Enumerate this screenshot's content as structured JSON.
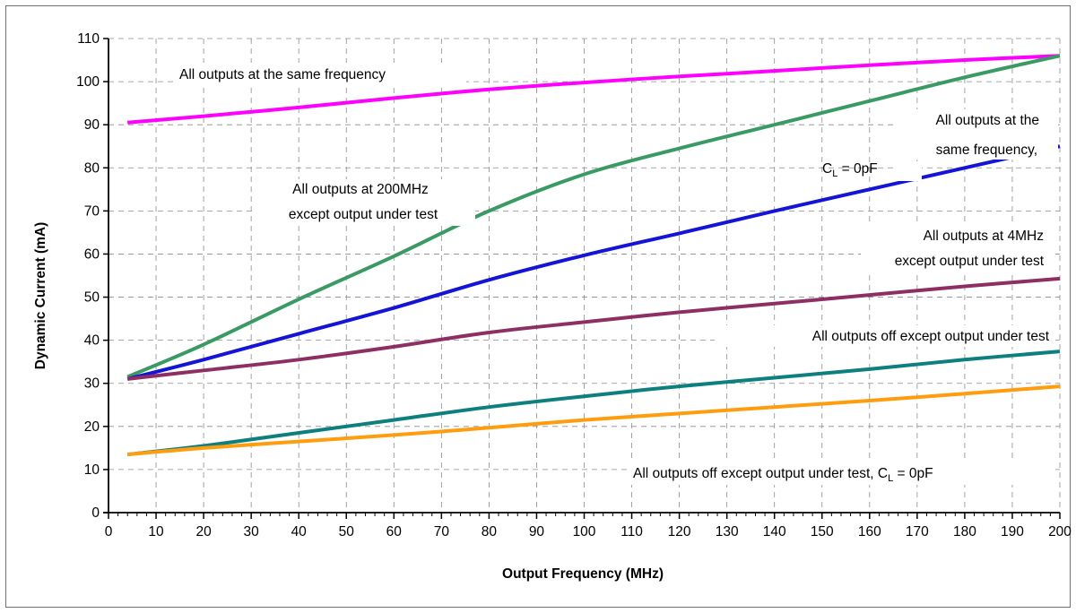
{
  "chart_data": {
    "type": "line",
    "title": "",
    "xlabel": "Output Frequency (MHz)",
    "ylabel": "Dynamic Current (mA)",
    "xlim": [
      0,
      200
    ],
    "ylim": [
      0,
      110
    ],
    "x_ticks": [
      0,
      10,
      20,
      30,
      40,
      50,
      60,
      70,
      80,
      90,
      100,
      110,
      120,
      130,
      140,
      150,
      160,
      170,
      180,
      190,
      200
    ],
    "y_ticks": [
      0,
      10,
      20,
      30,
      40,
      50,
      60,
      70,
      80,
      90,
      100,
      110
    ],
    "grid": true,
    "legend": "none",
    "series": [
      {
        "color": "#ff00ff",
        "x": [
          4,
          20,
          40,
          60,
          80,
          100,
          120,
          140,
          160,
          180,
          200
        ],
        "values": [
          90.5,
          92,
          94,
          96.2,
          98.2,
          99.8,
          101.2,
          102.5,
          103.8,
          105,
          106
        ]
      },
      {
        "color": "#3a9a64",
        "x": [
          4,
          20,
          40,
          60,
          80,
          100,
          120,
          140,
          160,
          180,
          200
        ],
        "values": [
          31.5,
          39,
          49.5,
          59.5,
          70,
          78.5,
          84.5,
          90,
          95.5,
          101,
          106
        ]
      },
      {
        "color": "#1414d8",
        "x": [
          4,
          20,
          40,
          60,
          80,
          100,
          120,
          140,
          160,
          180,
          200
        ],
        "values": [
          31,
          35.5,
          41.5,
          47.5,
          54,
          59.7,
          64.8,
          70,
          75,
          80,
          85
        ]
      },
      {
        "color": "#8e2f64",
        "x": [
          4,
          20,
          40,
          60,
          80,
          100,
          120,
          140,
          160,
          180,
          200
        ],
        "values": [
          31,
          33,
          35.5,
          38.5,
          41.8,
          44.2,
          46.5,
          48.5,
          50.5,
          52.5,
          54.3
        ]
      },
      {
        "color": "#0e7f7f",
        "x": [
          4,
          20,
          40,
          60,
          80,
          100,
          120,
          140,
          160,
          180,
          200
        ],
        "values": [
          13.5,
          15.5,
          18.5,
          21.5,
          24.5,
          27,
          29.3,
          31.3,
          33.3,
          35.5,
          37.4
        ]
      },
      {
        "color": "#ff9d0e",
        "x": [
          4,
          20,
          40,
          60,
          80,
          100,
          120,
          140,
          160,
          180,
          200
        ],
        "values": [
          13.5,
          15,
          16.5,
          18,
          19.7,
          21.5,
          23,
          24.5,
          26,
          27.6,
          29.3
        ]
      }
    ],
    "annotations": [
      {
        "lines": [
          "All outputs at the same frequency"
        ]
      },
      {
        "lines": [
          "All outputs at the",
          "same frequency,"
        ]
      },
      {
        "lines": [
          "All outputs at 200MHz",
          "except output under test"
        ]
      },
      {
        "lines": [
          "All outputs at 4MHz",
          "except output under test"
        ]
      },
      {
        "lines": [
          "All outputs off except output under test"
        ]
      }
    ],
    "cl_annotations": [
      {
        "before": "C",
        "sub": "L",
        "after": " = 0pF"
      },
      {
        "before": "All outputs off except output under test, C",
        "sub": "L",
        "after": " = 0pF"
      }
    ]
  }
}
